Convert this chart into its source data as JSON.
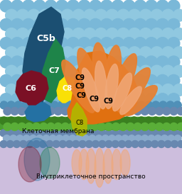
{
  "label_cellular": "Клеточная мембрана",
  "label_intracellular": "Внутриклеточное пространство",
  "colors": {
    "C5b_dark": "#1b4f72",
    "C5b_mid": "#2471a3",
    "C7": "#1e8449",
    "C6": "#7b1025",
    "C8_yellow": "#f9e007",
    "C9_orange": "#e07010",
    "C9_light": "#f0a878",
    "C9_petal": "#e88030",
    "membrane_blue1": "#7ab8d8",
    "membrane_blue2": "#5090b8",
    "membrane_blue3": "#6888b0",
    "membrane_green1": "#4a9e30",
    "membrane_green2": "#3a8020",
    "cytoplasm": "#cdbedd",
    "olive": "#8a9a00"
  }
}
